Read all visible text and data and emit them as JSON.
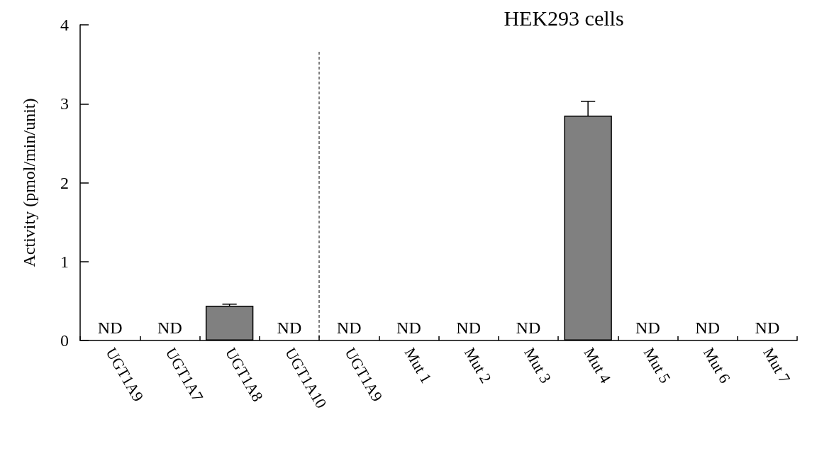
{
  "chart_data": {
    "type": "bar",
    "categories": [
      "UGT1A9",
      "UGT1A7",
      "UGT1A8",
      "UGT1A10",
      "UGT1A9",
      "Mut 1",
      "Mut 2",
      "Mut 3",
      "Mut 4",
      "Mut 5",
      "Mut 6",
      "Mut 7"
    ],
    "values": [
      null,
      null,
      0.44,
      null,
      null,
      null,
      null,
      null,
      2.85,
      null,
      null,
      null
    ],
    "errors": [
      null,
      null,
      [
        0.44,
        0.46
      ],
      null,
      null,
      null,
      null,
      null,
      [
        2.85,
        3.03
      ],
      null,
      null,
      null
    ],
    "value_labels": [
      "ND",
      "ND",
      null,
      "ND",
      "ND",
      "ND",
      "ND",
      "ND",
      null,
      "ND",
      "ND",
      "ND"
    ],
    "color": "#808080",
    "ylabel": "Activity (pmol/min/unit)",
    "ylim": [
      0,
      4
    ],
    "yticks": [
      0,
      1,
      2,
      3,
      4
    ],
    "annotations": [
      "HEK293 cells"
    ],
    "grid": false
  }
}
